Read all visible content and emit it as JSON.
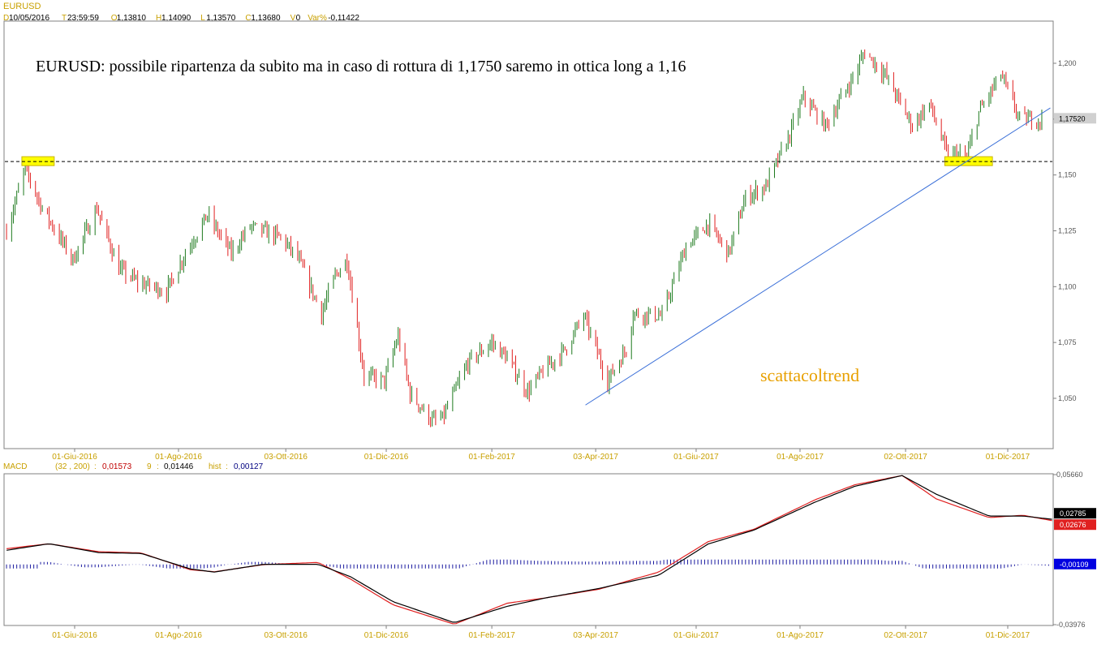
{
  "header": {
    "symbol": "EURUSD",
    "fields": [
      {
        "label": "D",
        "value": "10/05/2016"
      },
      {
        "label": "T",
        "value": "23:59:59"
      },
      {
        "label": "O",
        "value": "1,13810"
      },
      {
        "label": "H",
        "value": "1,14090"
      },
      {
        "label": "L",
        "value": "1,13570"
      },
      {
        "label": "C",
        "value": "1,13680"
      },
      {
        "label": "V",
        "value": "0"
      },
      {
        "label": "Var%",
        "value": "-0,11422"
      }
    ]
  },
  "annotation": {
    "headline": "EURUSD: possibile ripartenza da subito ma in caso di rottura di 1,1750 saremo in ottica long a 1,16",
    "watermark": "scattacoltrend"
  },
  "colors": {
    "up": "#1e7a1e",
    "down": "#e02020",
    "trendline": "#3a6fd8",
    "highlight": "#ffff00",
    "macd_line": "#000000",
    "signal_line": "#e02020",
    "histogram": "#1a1aa0",
    "label_orange": "#c8a000",
    "watermark": "#e8a000"
  },
  "chart_data": [
    {
      "type": "candlestick",
      "name": "EURUSD",
      "y_ticks": [
        "1,200",
        "1,175",
        "1,150",
        "1,125",
        "1,100",
        "1,075",
        "1,050"
      ],
      "y_tick_values": [
        1.2,
        1.175,
        1.15,
        1.125,
        1.1,
        1.075,
        1.05
      ],
      "ylim": [
        1.03,
        1.213
      ],
      "x_ticks": [
        "01-Giu-2016",
        "01-Ago-2016",
        "03-Ott-2016",
        "01-Dic-2016",
        "01-Feb-2017",
        "03-Apr-2017",
        "01-Giu-2017",
        "01-Ago-2017",
        "02-Ott-2017",
        "01-Dic-2017"
      ],
      "x_tick_dates": [
        "2016-06-01",
        "2016-08-01",
        "2016-10-03",
        "2016-12-01",
        "2017-02-01",
        "2017-04-03",
        "2017-06-01",
        "2017-08-01",
        "2017-10-02",
        "2017-12-01"
      ],
      "last_price_label": "1,17520",
      "last_price": 1.1752,
      "support_level": 1.156,
      "trendline": [
        {
          "date": "2017-03-28",
          "value": 1.047
        },
        {
          "date": "2017-12-26",
          "value": 1.18
        }
      ],
      "highlight_boxes": [
        {
          "date_start": "2016-05-01",
          "date_end": "2016-05-20",
          "value": 1.156
        },
        {
          "date_start": "2017-10-25",
          "date_end": "2017-11-22",
          "value": 1.156
        }
      ],
      "path": [
        {
          "date": "2016-04-22",
          "value": 1.125
        },
        {
          "date": "2016-05-03",
          "value": 1.153
        },
        {
          "date": "2016-05-13",
          "value": 1.135
        },
        {
          "date": "2016-05-31",
          "value": 1.112
        },
        {
          "date": "2016-06-14",
          "value": 1.135
        },
        {
          "date": "2016-06-27",
          "value": 1.108
        },
        {
          "date": "2016-07-08",
          "value": 1.102
        },
        {
          "date": "2016-07-25",
          "value": 1.098
        },
        {
          "date": "2016-08-05",
          "value": 1.115
        },
        {
          "date": "2016-08-18",
          "value": 1.132
        },
        {
          "date": "2016-09-01",
          "value": 1.115
        },
        {
          "date": "2016-09-12",
          "value": 1.127
        },
        {
          "date": "2016-09-30",
          "value": 1.122
        },
        {
          "date": "2016-10-10",
          "value": 1.113
        },
        {
          "date": "2016-10-24",
          "value": 1.088
        },
        {
          "date": "2016-11-01",
          "value": 1.105
        },
        {
          "date": "2016-11-08",
          "value": 1.112
        },
        {
          "date": "2016-11-18",
          "value": 1.06
        },
        {
          "date": "2016-11-30",
          "value": 1.058
        },
        {
          "date": "2016-12-08",
          "value": 1.078
        },
        {
          "date": "2016-12-15",
          "value": 1.052
        },
        {
          "date": "2016-12-28",
          "value": 1.04
        },
        {
          "date": "2017-01-03",
          "value": 1.041
        },
        {
          "date": "2017-01-18",
          "value": 1.066
        },
        {
          "date": "2017-02-01",
          "value": 1.075
        },
        {
          "date": "2017-02-10",
          "value": 1.068
        },
        {
          "date": "2017-02-22",
          "value": 1.053
        },
        {
          "date": "2017-03-03",
          "value": 1.062
        },
        {
          "date": "2017-03-16",
          "value": 1.072
        },
        {
          "date": "2017-03-27",
          "value": 1.087
        },
        {
          "date": "2017-04-10",
          "value": 1.058
        },
        {
          "date": "2017-04-21",
          "value": 1.072
        },
        {
          "date": "2017-04-25",
          "value": 1.088
        },
        {
          "date": "2017-05-12",
          "value": 1.087
        },
        {
          "date": "2017-05-26",
          "value": 1.118
        },
        {
          "date": "2017-06-08",
          "value": 1.128
        },
        {
          "date": "2017-06-20",
          "value": 1.115
        },
        {
          "date": "2017-06-30",
          "value": 1.14
        },
        {
          "date": "2017-07-12",
          "value": 1.145
        },
        {
          "date": "2017-07-26",
          "value": 1.168
        },
        {
          "date": "2017-08-03",
          "value": 1.185
        },
        {
          "date": "2017-08-16",
          "value": 1.172
        },
        {
          "date": "2017-08-31",
          "value": 1.192
        },
        {
          "date": "2017-09-08",
          "value": 1.205
        },
        {
          "date": "2017-09-20",
          "value": 1.195
        },
        {
          "date": "2017-10-06",
          "value": 1.172
        },
        {
          "date": "2017-10-16",
          "value": 1.182
        },
        {
          "date": "2017-10-26",
          "value": 1.16
        },
        {
          "date": "2017-11-07",
          "value": 1.158
        },
        {
          "date": "2017-11-14",
          "value": 1.178
        },
        {
          "date": "2017-11-27",
          "value": 1.195
        },
        {
          "date": "2017-12-08",
          "value": 1.175
        },
        {
          "date": "2017-12-21",
          "value": 1.175
        }
      ]
    },
    {
      "type": "line",
      "name": "MACD",
      "legend": {
        "indicator": "MACD",
        "params": "(32 , 200)",
        "macd": "0,01573",
        "signal_period": "9",
        "signal": "0,01446",
        "hist_label": "hist",
        "hist": "0,00127"
      },
      "y_ticks": [
        "0,05660",
        "-0,03976"
      ],
      "y_tick_values": [
        0.0566,
        -0.03976
      ],
      "ylim": [
        -0.03976,
        0.0566
      ],
      "value_labels": [
        "0,02785",
        "0,02676",
        "-0,00109"
      ],
      "value_label_values": [
        0.02785,
        0.02676,
        -0.00109
      ],
      "x_ticks": [
        "01-Giu-2016",
        "01-Ago-2016",
        "03-Ott-2016",
        "01-Dic-2016",
        "01-Feb-2017",
        "03-Apr-2017",
        "01-Giu-2017",
        "01-Ago-2017",
        "02-Ott-2017",
        "01-Dic-2017"
      ],
      "macd_path": [
        {
          "date": "2016-04-22",
          "value": 0.008
        },
        {
          "date": "2016-05-17",
          "value": 0.0122
        },
        {
          "date": "2016-06-15",
          "value": 0.0065
        },
        {
          "date": "2016-07-10",
          "value": 0.006
        },
        {
          "date": "2016-08-08",
          "value": -0.004
        },
        {
          "date": "2016-08-22",
          "value": -0.006
        },
        {
          "date": "2016-09-20",
          "value": -0.001
        },
        {
          "date": "2016-10-22",
          "value": -0.001
        },
        {
          "date": "2016-11-10",
          "value": -0.009
        },
        {
          "date": "2016-12-05",
          "value": -0.025
        },
        {
          "date": "2017-01-10",
          "value": -0.0385
        },
        {
          "date": "2017-02-10",
          "value": -0.028
        },
        {
          "date": "2017-03-05",
          "value": -0.0225
        },
        {
          "date": "2017-04-05",
          "value": -0.0165
        },
        {
          "date": "2017-05-10",
          "value": -0.008
        },
        {
          "date": "2017-06-08",
          "value": 0.012
        },
        {
          "date": "2017-07-05",
          "value": 0.021
        },
        {
          "date": "2017-08-10",
          "value": 0.039
        },
        {
          "date": "2017-09-02",
          "value": 0.049
        },
        {
          "date": "2017-09-30",
          "value": 0.056
        },
        {
          "date": "2017-10-20",
          "value": 0.044
        },
        {
          "date": "2017-11-20",
          "value": 0.03
        },
        {
          "date": "2017-12-10",
          "value": 0.03
        },
        {
          "date": "2017-12-28",
          "value": 0.0278
        }
      ],
      "signal_path": [
        {
          "date": "2016-04-22",
          "value": 0.009
        },
        {
          "date": "2016-05-17",
          "value": 0.0122
        },
        {
          "date": "2016-06-15",
          "value": 0.0071
        },
        {
          "date": "2016-07-10",
          "value": 0.0063
        },
        {
          "date": "2016-08-08",
          "value": -0.0045
        },
        {
          "date": "2016-08-22",
          "value": -0.0058
        },
        {
          "date": "2016-09-20",
          "value": -0.0012
        },
        {
          "date": "2016-10-22",
          "value": 0.0002
        },
        {
          "date": "2016-11-10",
          "value": -0.0105
        },
        {
          "date": "2016-12-05",
          "value": -0.027
        },
        {
          "date": "2017-01-10",
          "value": -0.0395
        },
        {
          "date": "2017-02-10",
          "value": -0.026
        },
        {
          "date": "2017-03-05",
          "value": -0.0225
        },
        {
          "date": "2017-04-05",
          "value": -0.017
        },
        {
          "date": "2017-05-10",
          "value": -0.006
        },
        {
          "date": "2017-06-08",
          "value": 0.0135
        },
        {
          "date": "2017-07-05",
          "value": 0.0215
        },
        {
          "date": "2017-08-10",
          "value": 0.0405
        },
        {
          "date": "2017-09-02",
          "value": 0.05
        },
        {
          "date": "2017-09-30",
          "value": 0.056
        },
        {
          "date": "2017-10-20",
          "value": 0.041
        },
        {
          "date": "2017-11-20",
          "value": 0.029
        },
        {
          "date": "2017-12-10",
          "value": 0.0305
        },
        {
          "date": "2017-12-28",
          "value": 0.0268
        }
      ],
      "histogram_baseline": -0.00109
    }
  ]
}
